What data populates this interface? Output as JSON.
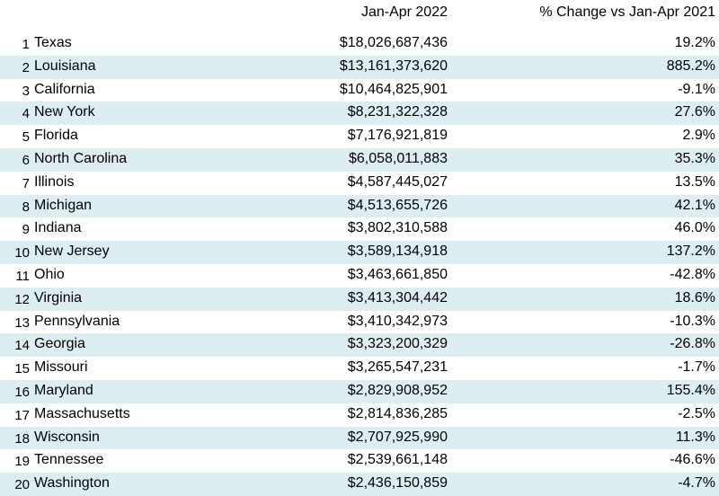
{
  "chart_data": {
    "type": "table",
    "columns": [
      "",
      "",
      "Jan-Apr 2022",
      "% Change vs Jan-Apr 2021"
    ],
    "rows": [
      {
        "rank": "1",
        "state": "Texas",
        "value": "$18,026,687,436",
        "change": "19.2%"
      },
      {
        "rank": "2",
        "state": "Louisiana",
        "value": "$13,161,373,620",
        "change": "885.2%"
      },
      {
        "rank": "3",
        "state": "California",
        "value": "$10,464,825,901",
        "change": "-9.1%"
      },
      {
        "rank": "4",
        "state": "New York",
        "value": "$8,231,322,328",
        "change": "27.6%"
      },
      {
        "rank": "5",
        "state": "Florida",
        "value": "$7,176,921,819",
        "change": "2.9%"
      },
      {
        "rank": "6",
        "state": "North Carolina",
        "value": "$6,058,011,883",
        "change": "35.3%"
      },
      {
        "rank": "7",
        "state": "Illinois",
        "value": "$4,587,445,027",
        "change": "13.5%"
      },
      {
        "rank": "8",
        "state": "Michigan",
        "value": "$4,513,655,726",
        "change": "42.1%"
      },
      {
        "rank": "9",
        "state": "Indiana",
        "value": "$3,802,310,588",
        "change": "46.0%"
      },
      {
        "rank": "10",
        "state": "New Jersey",
        "value": "$3,589,134,918",
        "change": "137.2%"
      },
      {
        "rank": "11",
        "state": "Ohio",
        "value": "$3,463,661,850",
        "change": "-42.8%"
      },
      {
        "rank": "12",
        "state": "Virginia",
        "value": "$3,413,304,442",
        "change": "18.6%"
      },
      {
        "rank": "13",
        "state": "Pennsylvania",
        "value": "$3,410,342,973",
        "change": "-10.3%"
      },
      {
        "rank": "14",
        "state": "Georgia",
        "value": "$3,323,200,329",
        "change": "-26.8%"
      },
      {
        "rank": "15",
        "state": "Missouri",
        "value": "$3,265,547,231",
        "change": "-1.7%"
      },
      {
        "rank": "16",
        "state": "Maryland",
        "value": "$2,829,908,952",
        "change": "155.4%"
      },
      {
        "rank": "17",
        "state": "Massachusetts",
        "value": "$2,814,836,285",
        "change": "-2.5%"
      },
      {
        "rank": "18",
        "state": "Wisconsin",
        "value": "$2,707,925,990",
        "change": "11.3%"
      },
      {
        "rank": "19",
        "state": "Tennessee",
        "value": "$2,539,661,148",
        "change": "-46.6%"
      },
      {
        "rank": "20",
        "state": "Washington",
        "value": "$2,436,150,859",
        "change": "-4.7%"
      }
    ]
  },
  "colors": {
    "row_shade": "#ddeef3",
    "background": "#ffffff",
    "text": "#000000"
  }
}
